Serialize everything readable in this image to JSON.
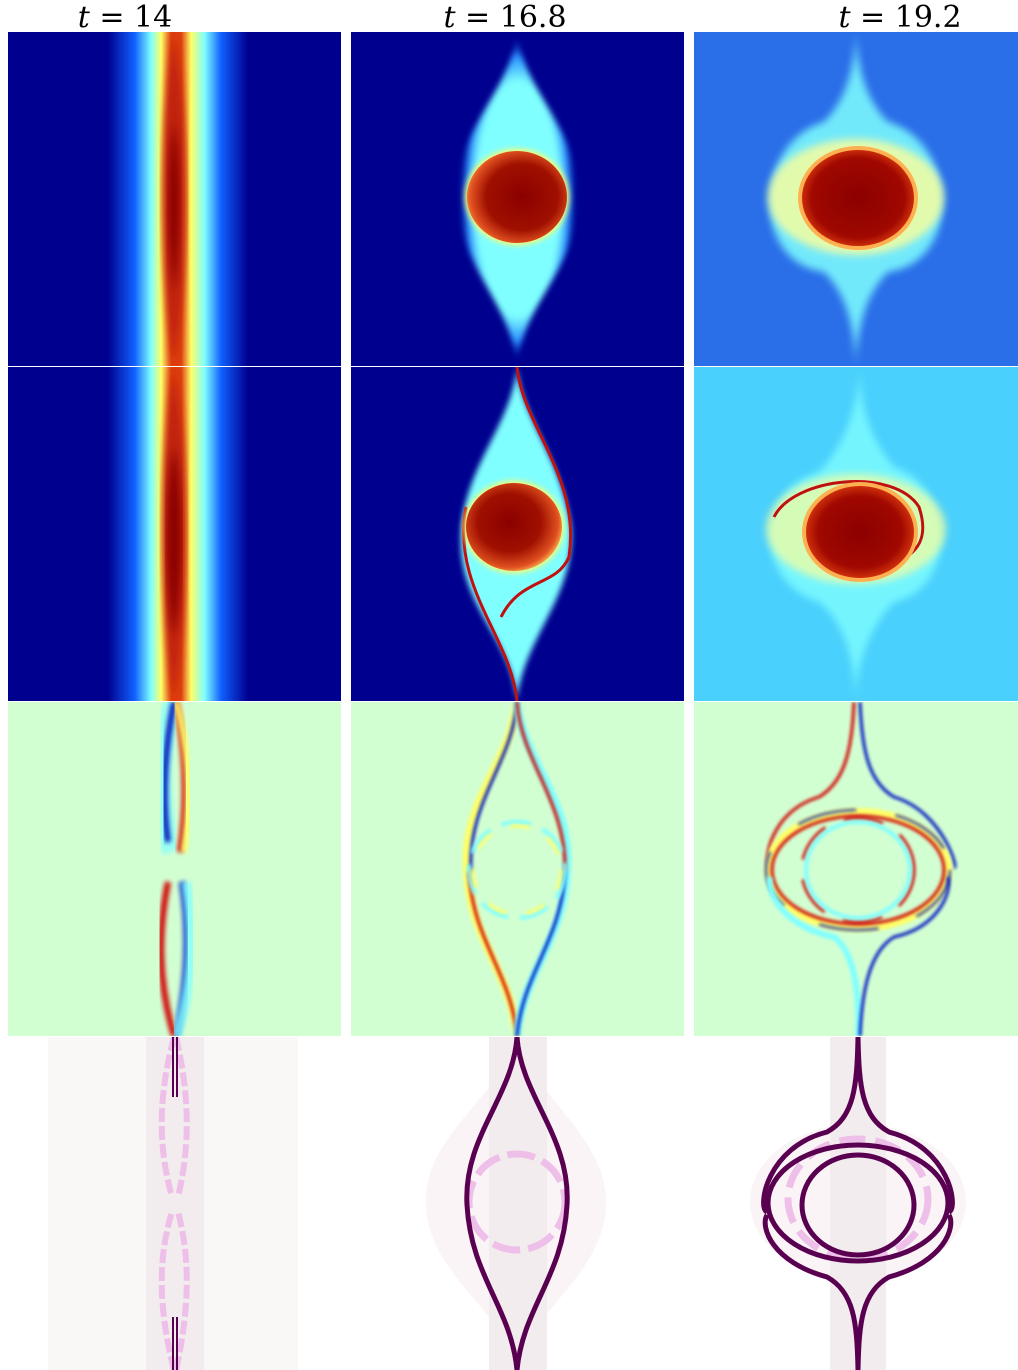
{
  "columns": [
    {
      "var": "t",
      "eq": " = ",
      "value": "14"
    },
    {
      "var": "t",
      "eq": " = ",
      "value": "16.8"
    },
    {
      "var": "t",
      "eq": " = ",
      "value": "19.2"
    }
  ],
  "colors": {
    "jet_dark_blue": "#00008f",
    "jet_red": "#8b0000",
    "cyan": "#7fffff",
    "yellow": "#ffff66",
    "mint_background": "#d2ffd2",
    "light_blue_background": "#4ad0fc",
    "mid_blue_background": "#2a6ee8",
    "contour_purple": "#5a0050",
    "contour_pink": "#eebfe8"
  }
}
